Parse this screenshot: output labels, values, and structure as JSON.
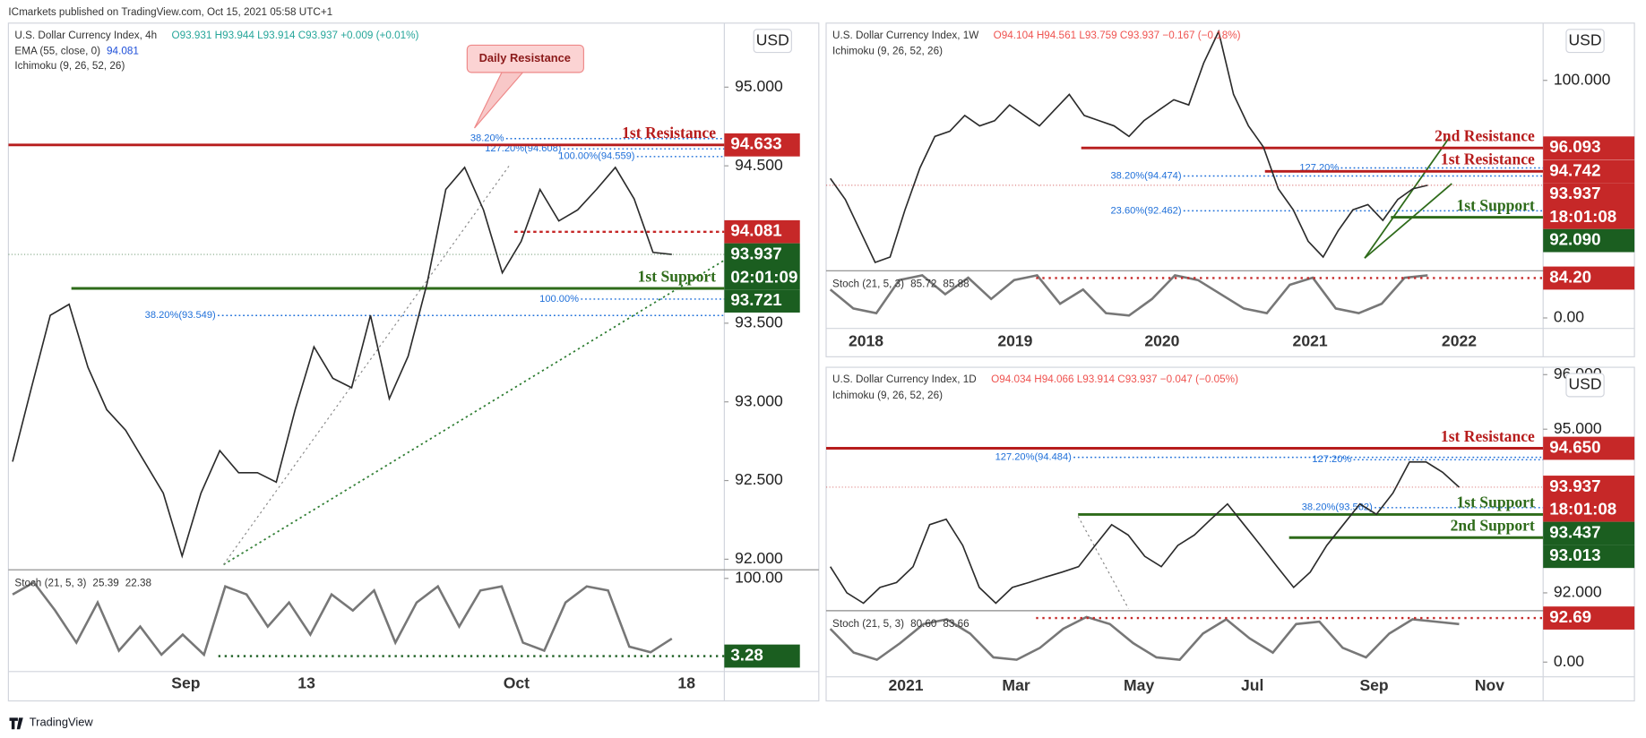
{
  "header": "ICmarkets published on TradingView.com, Oct 15, 2021 05:58 UTC+1",
  "footer": "TradingView",
  "panels": [
    {
      "symbol": "U.S. Dollar Currency Index, 4h",
      "ohlc": "O93.931 H93.944 L93.914 C93.937 +0.009 (+0.01%)",
      "ohlc_color": "#26a69a",
      "ema_legend": "EMA (55, close, 0)",
      "ema_value": 94.081,
      "ichimoku": "Ichimoku (9, 26, 52, 26)",
      "currency": "USD",
      "callout": "Daily Resistance",
      "ylim": [
        91.933,
        95.407
      ],
      "yticks": [
        {
          "value": 92,
          "label": "92.000"
        },
        {
          "value": 92.5,
          "label": "92.500"
        },
        {
          "value": 93,
          "label": "93.000"
        },
        {
          "value": 93.5,
          "label": "93.500"
        },
        {
          "value": 94.5,
          "label": "94.500"
        },
        {
          "value": 95,
          "label": "95.000"
        }
      ],
      "x_labels": [
        "Sep",
        "13",
        "Oct",
        "18"
      ],
      "close": [
        92.62,
        93.09,
        93.55,
        93.62,
        93.22,
        92.95,
        92.82,
        92.62,
        92.42,
        92.02,
        92.42,
        92.69,
        92.55,
        92.55,
        92.49,
        92.95,
        93.35,
        93.15,
        93.09,
        93.55,
        93.02,
        93.29,
        93.75,
        94.35,
        94.49,
        94.22,
        93.82,
        94.02,
        94.35,
        94.15,
        94.22,
        94.35,
        94.49,
        94.29,
        93.95,
        93.937
      ],
      "levels": [
        {
          "label": "1st Resistance",
          "value": 94.633,
          "color": "#b71c1c"
        },
        {
          "label": "1st Support",
          "value": 93.721,
          "color": "#2e6b1a"
        }
      ],
      "fibs": [
        {
          "label": "38.20%",
          "value": 94.673
        },
        {
          "label": "127.20%(94.608)",
          "value": 94.608
        },
        {
          "label": "100.00%(94.559)",
          "value": 94.559
        },
        {
          "label": "38.20%(93.549)",
          "value": 93.549
        },
        {
          "label": "100.00%",
          "value": 93.653
        }
      ],
      "tags": [
        {
          "value": 94.633,
          "color": "#c62828"
        },
        {
          "value": 94.081,
          "color": "#c62828"
        },
        {
          "value": 93.937,
          "countdown": "02:01:09",
          "color": "#1b5e20"
        },
        {
          "value": 93.721,
          "color": "#1b5e20"
        }
      ],
      "stoch": {
        "legend": "Stoch (21, 5, 3)",
        "readout": [
          "25.39",
          "22.38"
        ],
        "ylim": [
          -16,
          110.7
        ],
        "yticks": [
          {
            "value": 100,
            "label": "100.00"
          }
        ],
        "values": [
          80,
          95,
          60,
          20,
          70,
          10,
          40,
          5,
          30,
          5,
          90,
          80,
          40,
          70,
          30,
          80,
          60,
          85,
          20,
          70,
          90,
          40,
          85,
          90,
          20,
          10,
          70,
          90,
          85,
          15,
          8,
          25
        ],
        "tag": {
          "value": 3.28,
          "color": "#1b5e20"
        }
      }
    },
    {
      "symbol": "U.S. Dollar Currency Index, 1W",
      "ohlc": "O94.104 H94.561 L93.759 C93.937 −0.167 (−0.18%)",
      "ohlc_color": "#ef5350",
      "ichimoku": "Ichimoku (9, 26, 52, 26)",
      "currency": "USD",
      "ylim": [
        88.998,
        103.31
      ],
      "yticks": [
        {
          "value": 100,
          "label": "100.000"
        }
      ],
      "x_labels": [
        "2018",
        "2019",
        "2020",
        "2021",
        "2022"
      ],
      "close": [
        94.33,
        93.12,
        91.3,
        89.48,
        89.79,
        92.52,
        94.94,
        96.76,
        97.06,
        97.97,
        97.37,
        97.67,
        98.58,
        97.97,
        97.37,
        98.28,
        99.19,
        97.97,
        97.67,
        97.37,
        96.76,
        97.67,
        98.28,
        98.88,
        98.58,
        101.0,
        102.82,
        99.19,
        97.37,
        96.15,
        93.73,
        92.52,
        90.7,
        89.79,
        91.3,
        92.52,
        92.82,
        91.91,
        93.12,
        93.73,
        93.937
      ],
      "levels": [
        {
          "label": "2nd Resistance",
          "value": 96.093,
          "color": "#b71c1c"
        },
        {
          "label": "1st Resistance",
          "value": 94.742,
          "color": "#b71c1c"
        },
        {
          "label": "1st Support",
          "value": 92.09,
          "color": "#2e6b1a"
        }
      ],
      "fibs": [
        {
          "label": "127.20%",
          "value": 94.94
        },
        {
          "label": "38.20%(94.474)",
          "value": 94.474
        },
        {
          "label": "23.60%(92.462)",
          "value": 92.462
        }
      ],
      "tags": [
        {
          "value": 96.093,
          "color": "#c62828"
        },
        {
          "value": 94.742,
          "color": "#c62828"
        },
        {
          "value": 93.937,
          "countdown": "18:01:08",
          "color": "#c62828"
        },
        {
          "value": 92.09,
          "label": "92.090",
          "color": "#1b5e20"
        }
      ],
      "stoch": {
        "legend": "Stoch (21, 5, 3)",
        "readout": [
          "85.72",
          "85.88"
        ],
        "ylim": [
          -22.2,
          99.7
        ],
        "yticks": [
          {
            "value": 0,
            "label": "0.00"
          }
        ],
        "values": [
          60,
          20,
          10,
          80,
          90,
          50,
          85,
          40,
          80,
          90,
          30,
          60,
          10,
          5,
          40,
          90,
          80,
          50,
          20,
          10,
          70,
          85,
          20,
          10,
          30,
          85,
          90
        ],
        "tag": {
          "value": 84.2,
          "label": "84.20",
          "color": "#c62828"
        }
      }
    },
    {
      "symbol": "U.S. Dollar Currency Index, 1D",
      "ohlc": "O94.034 H94.066 L93.914 C93.937 −0.047 (−0.05%)",
      "ohlc_color": "#ef5350",
      "ichimoku": "Ichimoku (9, 26, 52, 26)",
      "currency": "USD",
      "ylim": [
        91.673,
        96.135
      ],
      "yticks": [
        {
          "value": 92,
          "label": "92.000"
        },
        {
          "value": 95,
          "label": "95.000"
        },
        {
          "value": 96,
          "label": "96.000"
        }
      ],
      "x_labels": [
        "2021",
        "Mar",
        "May",
        "Jul",
        "Sep",
        "Nov"
      ],
      "close": [
        92.48,
        92.0,
        91.81,
        92.1,
        92.19,
        92.48,
        93.25,
        93.35,
        92.87,
        92.1,
        91.81,
        92.1,
        92.19,
        92.29,
        92.38,
        92.48,
        92.87,
        93.25,
        93.06,
        92.67,
        92.48,
        92.87,
        93.06,
        93.35,
        93.63,
        93.25,
        92.87,
        92.48,
        92.1,
        92.38,
        92.87,
        93.25,
        93.63,
        93.44,
        93.83,
        94.4,
        94.4,
        94.21,
        93.937
      ],
      "levels": [
        {
          "label": "1st Resistance",
          "value": 94.65,
          "color": "#b71c1c"
        },
        {
          "label": "1st Support",
          "value": 93.437,
          "color": "#2e6b1a"
        },
        {
          "label": "2nd Support",
          "value": 93.013,
          "color": "#2e6b1a"
        }
      ],
      "fibs": [
        {
          "label": "127.20%(94.484)",
          "value": 94.484
        },
        {
          "label": "127.20%",
          "value": 94.44
        },
        {
          "label": "38.20%(93.562)",
          "value": 93.562
        }
      ],
      "tags": [
        {
          "value": 94.65,
          "label": "94.650",
          "color": "#c62828"
        },
        {
          "value": 93.937,
          "countdown": "18:01:08",
          "color": "#c62828"
        },
        {
          "value": 93.437,
          "color": "#1b5e20"
        },
        {
          "value": 93.013,
          "color": "#1b5e20"
        }
      ],
      "stoch": {
        "legend": "Stoch (21, 5, 3)",
        "readout": [
          "80.60",
          "83.66"
        ],
        "ylim": [
          -30.9,
          108.1
        ],
        "yticks": [
          {
            "value": 0,
            "label": "0.00"
          }
        ],
        "values": [
          70,
          20,
          5,
          40,
          80,
          90,
          60,
          10,
          5,
          30,
          70,
          95,
          80,
          40,
          10,
          5,
          60,
          90,
          50,
          20,
          80,
          85,
          30,
          10,
          60,
          90,
          85,
          80
        ],
        "tag": {
          "value": 92.69,
          "color": "#c62828"
        }
      }
    }
  ]
}
